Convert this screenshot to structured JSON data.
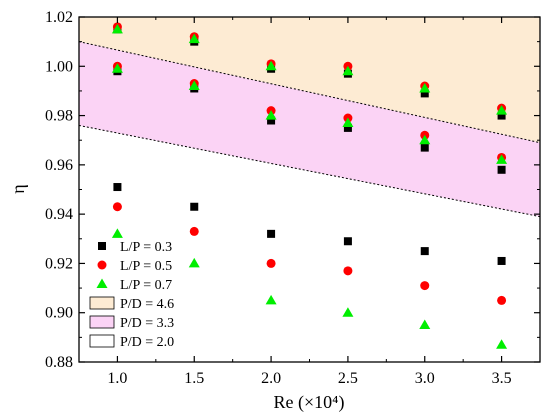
{
  "chart_data": {
    "type": "scatter",
    "xlabel": "Re (×10⁴)",
    "ylabel": "η",
    "xlim": [
      0.75,
      3.75
    ],
    "ylim": [
      0.88,
      1.02
    ],
    "x_ticks": [
      1.0,
      1.5,
      2.0,
      2.5,
      3.0,
      3.5
    ],
    "y_ticks": [
      0.88,
      0.9,
      0.92,
      0.94,
      0.96,
      0.98,
      1.0,
      1.02
    ],
    "x_tick_labels": [
      "1.0",
      "1.5",
      "2.0",
      "2.5",
      "3.0",
      "3.5"
    ],
    "y_tick_labels": [
      "0.88",
      "0.90",
      "0.92",
      "0.94",
      "0.96",
      "0.98",
      "1.00",
      "1.02"
    ],
    "grid": false,
    "legend_position": "bottom-left",
    "series": [
      {
        "name": "L/P = 0.3",
        "marker": "square",
        "color": "#000000",
        "points": [
          [
            1.0,
            1.015
          ],
          [
            1.5,
            1.01
          ],
          [
            2.0,
            0.999
          ],
          [
            2.5,
            0.997
          ],
          [
            3.0,
            0.989
          ],
          [
            3.5,
            0.98
          ],
          [
            1.0,
            0.998
          ],
          [
            1.5,
            0.991
          ],
          [
            2.0,
            0.978
          ],
          [
            2.5,
            0.975
          ],
          [
            3.0,
            0.967
          ],
          [
            3.5,
            0.958
          ],
          [
            1.0,
            0.951
          ],
          [
            1.5,
            0.943
          ],
          [
            2.0,
            0.932
          ],
          [
            2.5,
            0.929
          ],
          [
            3.0,
            0.925
          ],
          [
            3.5,
            0.921
          ]
        ]
      },
      {
        "name": "L/P = 0.5",
        "marker": "circle",
        "color": "#ff0000",
        "points": [
          [
            1.0,
            1.016
          ],
          [
            1.5,
            1.012
          ],
          [
            2.0,
            1.001
          ],
          [
            2.5,
            1.0
          ],
          [
            3.0,
            0.992
          ],
          [
            3.5,
            0.983
          ],
          [
            1.0,
            1.0
          ],
          [
            1.5,
            0.993
          ],
          [
            2.0,
            0.982
          ],
          [
            2.5,
            0.979
          ],
          [
            3.0,
            0.972
          ],
          [
            3.5,
            0.963
          ],
          [
            1.0,
            0.943
          ],
          [
            1.5,
            0.933
          ],
          [
            2.0,
            0.92
          ],
          [
            2.5,
            0.917
          ],
          [
            3.0,
            0.911
          ],
          [
            3.5,
            0.905
          ]
        ]
      },
      {
        "name": "L/P = 0.7",
        "marker": "triangle",
        "color": "#00ee00",
        "points": [
          [
            1.0,
            1.015
          ],
          [
            1.5,
            1.011
          ],
          [
            2.0,
            1.0
          ],
          [
            2.5,
            0.998
          ],
          [
            3.0,
            0.991
          ],
          [
            3.5,
            0.982
          ],
          [
            1.0,
            0.999
          ],
          [
            1.5,
            0.992
          ],
          [
            2.0,
            0.98
          ],
          [
            2.5,
            0.977
          ],
          [
            3.0,
            0.97
          ],
          [
            3.5,
            0.962
          ],
          [
            1.0,
            0.932
          ],
          [
            1.5,
            0.92
          ],
          [
            2.0,
            0.905
          ],
          [
            2.5,
            0.9
          ],
          [
            3.0,
            0.895
          ],
          [
            3.5,
            0.887
          ]
        ]
      }
    ],
    "regions": [
      {
        "name": "P/D = 4.6",
        "color": "#fdebd3",
        "lower_line": [
          [
            0.75,
            1.01
          ],
          [
            3.75,
            0.969
          ]
        ]
      },
      {
        "name": "P/D = 3.3",
        "color": "#fbd3f5",
        "lower_line": [
          [
            0.75,
            0.976
          ],
          [
            3.75,
            0.939
          ]
        ]
      },
      {
        "name": "P/D = 2.0",
        "color": "#ffffff"
      }
    ]
  }
}
